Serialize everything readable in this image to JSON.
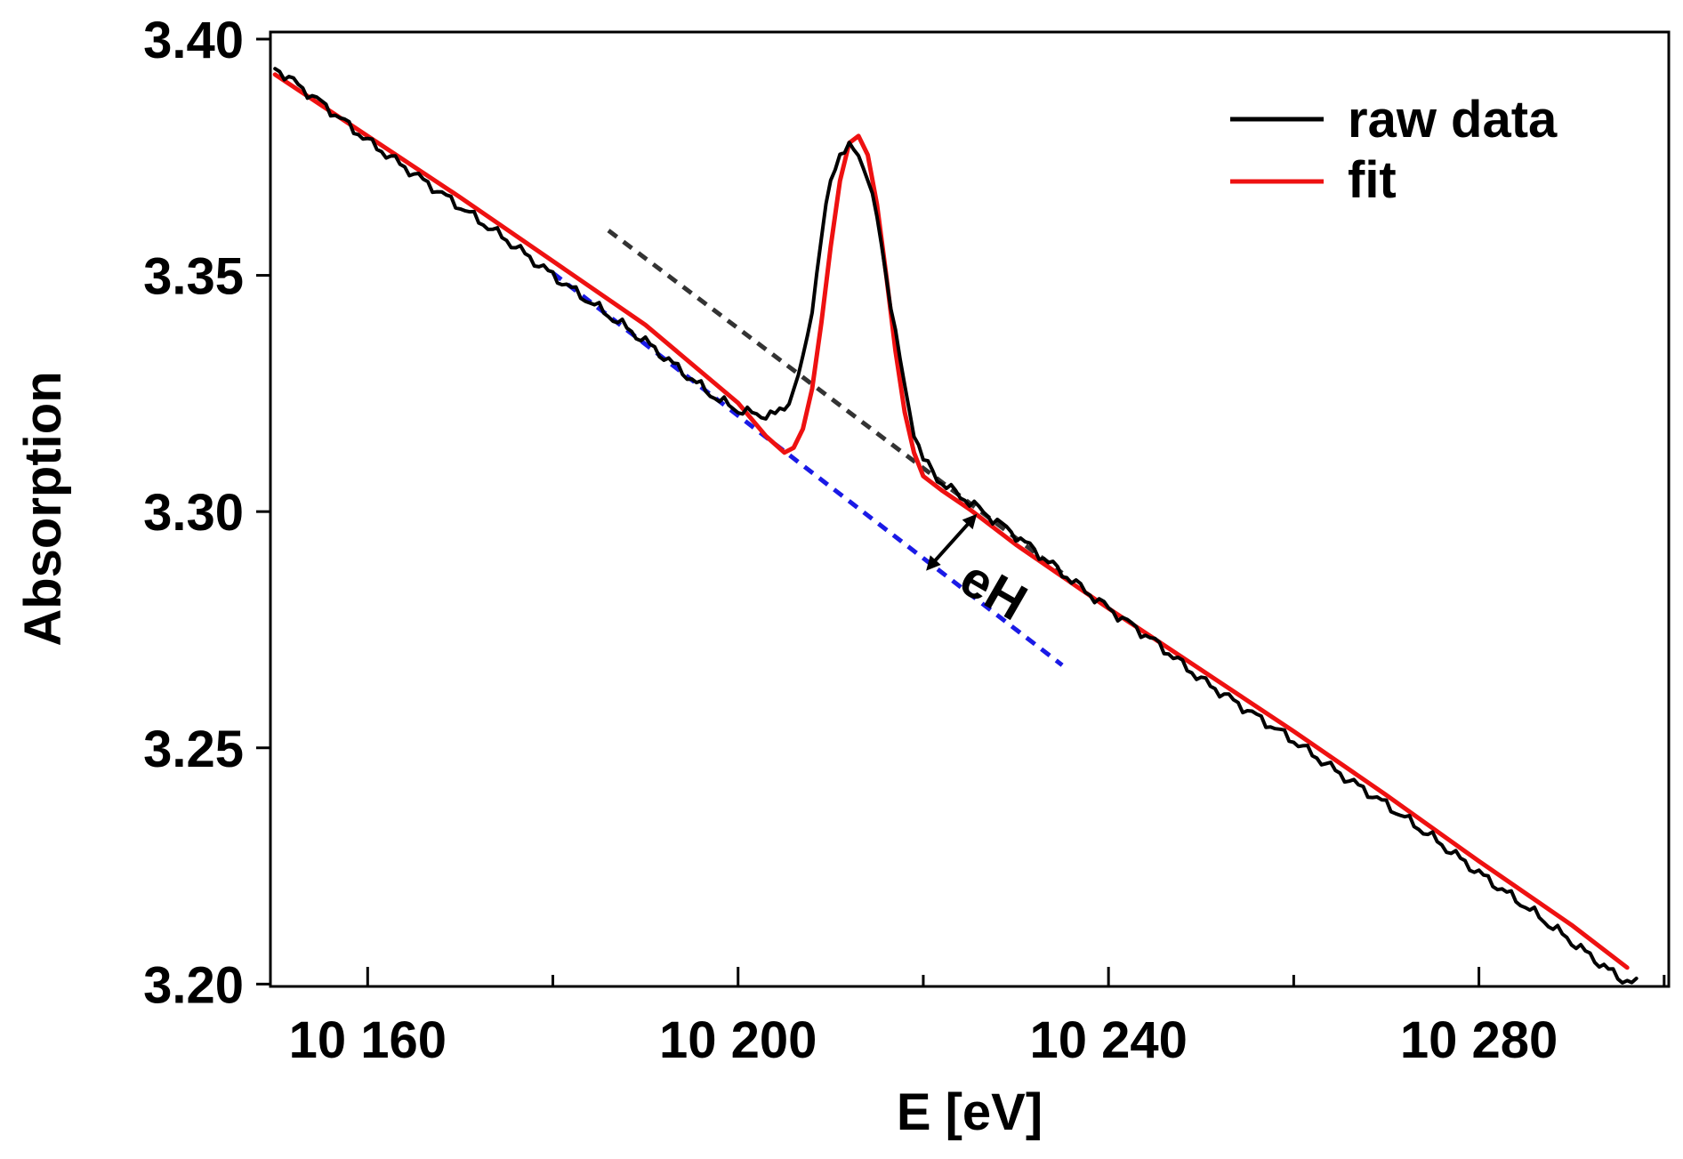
{
  "chart_data": {
    "type": "line",
    "xlabel": "E [eV]",
    "ylabel": "Absorption",
    "xlim": [
      10149.5,
      10300.5
    ],
    "ylim": [
      3.1995,
      3.4015
    ],
    "x_ticks": [
      {
        "value": 10160,
        "label": "10 160"
      },
      {
        "value": 10200,
        "label": "10 200"
      },
      {
        "value": 10240,
        "label": "10 240"
      },
      {
        "value": 10280,
        "label": "10 280"
      }
    ],
    "x_minor_ticks": [
      10180,
      10220,
      10260,
      10300
    ],
    "y_ticks": [
      {
        "value": 3.2,
        "label": "3.20"
      },
      {
        "value": 3.25,
        "label": "3.25"
      },
      {
        "value": 3.3,
        "label": "3.30"
      },
      {
        "value": 3.35,
        "label": "3.35"
      },
      {
        "value": 3.4,
        "label": "3.40"
      }
    ],
    "legend": {
      "position": "top-right",
      "entries": [
        {
          "label": "raw data",
          "color": "#000000"
        },
        {
          "label": "fit",
          "color": "#ee1111"
        }
      ]
    },
    "series": [
      {
        "name": "raw data",
        "color": "#000000",
        "x": [
          10150,
          10155,
          10160,
          10165,
          10170,
          10175,
          10180,
          10185,
          10190,
          10195,
          10198,
          10200,
          10202,
          10204,
          10205,
          10206,
          10207,
          10208,
          10209,
          10210,
          10211,
          10212,
          10213,
          10214,
          10215,
          10216,
          10217,
          10218,
          10219,
          10220,
          10222,
          10225,
          10230,
          10235,
          10240,
          10245,
          10250,
          10255,
          10260,
          10265,
          10270,
          10275,
          10280,
          10285,
          10290,
          10295,
          10297
        ],
        "y": [
          3.394,
          3.3865,
          3.3785,
          3.3715,
          3.3645,
          3.3575,
          3.35,
          3.343,
          3.336,
          3.328,
          3.3235,
          3.3215,
          3.3205,
          3.3205,
          3.322,
          3.3255,
          3.332,
          3.343,
          3.358,
          3.37,
          3.376,
          3.377,
          3.3755,
          3.371,
          3.362,
          3.35,
          3.338,
          3.326,
          3.317,
          3.311,
          3.306,
          3.302,
          3.295,
          3.287,
          3.2795,
          3.2725,
          3.2645,
          3.258,
          3.2515,
          3.2445,
          3.238,
          3.231,
          3.2235,
          3.2165,
          3.209,
          3.2015,
          3.2
        ]
      },
      {
        "name": "fit",
        "color": "#ee1111",
        "x": [
          10150,
          10160,
          10170,
          10180,
          10190,
          10200,
          10203,
          10205,
          10206,
          10207,
          10208,
          10209,
          10210,
          10211,
          10212,
          10213,
          10214,
          10215,
          10216,
          10217,
          10218,
          10219,
          10220,
          10222,
          10225,
          10230,
          10240,
          10250,
          10260,
          10270,
          10280,
          10290,
          10296
        ],
        "y": [
          3.3925,
          3.3795,
          3.3665,
          3.353,
          3.3395,
          3.323,
          3.316,
          3.3125,
          3.3135,
          3.3175,
          3.326,
          3.34,
          3.356,
          3.37,
          3.378,
          3.3795,
          3.3755,
          3.365,
          3.35,
          3.334,
          3.321,
          3.3125,
          3.3075,
          3.3045,
          3.3005,
          3.293,
          3.2795,
          3.2665,
          3.2535,
          3.24,
          3.226,
          3.2125,
          3.2035
        ]
      }
    ],
    "baseline_before_peak": {
      "name": "pre-edge baseline",
      "color": "#1a1ae6",
      "style": "dashed",
      "x": [
        10180,
        10235
      ],
      "y": [
        3.3505,
        3.2675
      ]
    },
    "baseline_after_peak": {
      "name": "post-edge baseline",
      "color": "#333333",
      "style": "dashed",
      "x": [
        10186,
        10235
      ],
      "y": [
        3.3595,
        3.287
      ]
    },
    "annotations": [
      {
        "text": "eH",
        "type": "double-arrow",
        "x_from": 10220.3,
        "y_from": 3.2875,
        "x_to": 10225.8,
        "y_to": 3.2995
      }
    ]
  }
}
